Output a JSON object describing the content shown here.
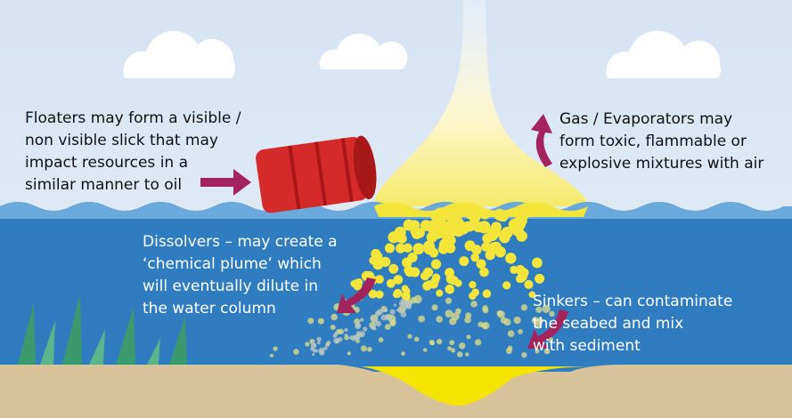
{
  "floaters": [
    "Floaters may form a visible /",
    "non visible slick that may",
    "impact resources in a",
    "similar manner to oil"
  ],
  "gas": [
    "Gas / Evaporators may",
    "form toxic, flammable or",
    "explosive mixtures with air"
  ],
  "dissolvers": [
    "Dissolvers – may create a",
    "‘chemical plume’ which",
    "will eventually dilute in",
    "the water column"
  ],
  "sinkers": [
    "Sinkers – can contaminate",
    "the seabed and mix",
    "with sediment"
  ]
}
